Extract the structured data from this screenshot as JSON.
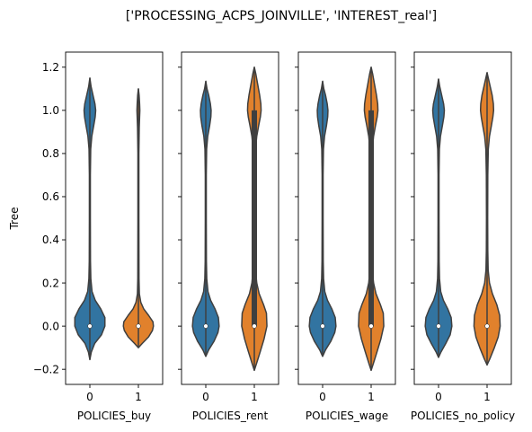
{
  "figure": {
    "title": "['PROCESSING_ACPS_JOINVILLE', 'INTEREST_real']",
    "ylabel": "Tree"
  },
  "colors": {
    "category_0": "#3274a1",
    "category_1": "#e1812c",
    "inner": "#3f3f3f",
    "median": "#ffffff"
  },
  "chart_data": [
    {
      "type": "violin",
      "xlabel": "POLICIES_buy",
      "categories": [
        "0",
        "1"
      ],
      "ylim": [
        -0.27,
        1.27
      ],
      "yticks": [
        -0.2,
        0.0,
        0.2,
        0.4,
        0.6,
        0.8,
        1.0,
        1.2
      ],
      "violins": [
        {
          "category": "0",
          "min": -0.155,
          "max": 1.15,
          "q1": 0.0,
          "median": 0.0,
          "q3": 0.0,
          "density": [
            [
              -0.155,
              0.0
            ],
            [
              -0.12,
              0.06
            ],
            [
              -0.08,
              0.2
            ],
            [
              -0.04,
              0.48
            ],
            [
              0.0,
              0.62
            ],
            [
              0.04,
              0.62
            ],
            [
              0.08,
              0.45
            ],
            [
              0.12,
              0.22
            ],
            [
              0.16,
              0.09
            ],
            [
              0.22,
              0.04
            ],
            [
              0.3,
              0.025
            ],
            [
              0.5,
              0.02
            ],
            [
              0.7,
              0.02
            ],
            [
              0.82,
              0.035
            ],
            [
              0.88,
              0.08
            ],
            [
              0.93,
              0.16
            ],
            [
              0.97,
              0.22
            ],
            [
              1.0,
              0.24
            ],
            [
              1.03,
              0.21
            ],
            [
              1.07,
              0.13
            ],
            [
              1.11,
              0.05
            ],
            [
              1.15,
              0.0
            ]
          ]
        },
        {
          "category": "1",
          "min": -0.1,
          "max": 1.1,
          "q1": 0.0,
          "median": 0.0,
          "q3": 0.0,
          "density": [
            [
              -0.1,
              0.0
            ],
            [
              -0.08,
              0.16
            ],
            [
              -0.05,
              0.42
            ],
            [
              -0.02,
              0.58
            ],
            [
              0.0,
              0.62
            ],
            [
              0.02,
              0.6
            ],
            [
              0.05,
              0.42
            ],
            [
              0.08,
              0.22
            ],
            [
              0.11,
              0.1
            ],
            [
              0.15,
              0.04
            ],
            [
              0.22,
              0.025
            ],
            [
              0.5,
              0.02
            ],
            [
              0.8,
              0.02
            ],
            [
              0.92,
              0.035
            ],
            [
              0.97,
              0.05
            ],
            [
              1.0,
              0.06
            ],
            [
              1.03,
              0.05
            ],
            [
              1.07,
              0.03
            ],
            [
              1.1,
              0.0
            ]
          ]
        }
      ]
    },
    {
      "type": "violin",
      "xlabel": "POLICIES_rent",
      "categories": [
        "0",
        "1"
      ],
      "ylim": [
        -0.27,
        1.27
      ],
      "yticks": [
        -0.2,
        0.0,
        0.2,
        0.4,
        0.6,
        0.8,
        1.0,
        1.2
      ],
      "violins": [
        {
          "category": "0",
          "min": -0.14,
          "max": 1.135,
          "q1": 0.0,
          "median": 0.0,
          "q3": 0.0,
          "density": [
            [
              -0.14,
              0.0
            ],
            [
              -0.11,
              0.12
            ],
            [
              -0.07,
              0.34
            ],
            [
              -0.03,
              0.5
            ],
            [
              0.0,
              0.55
            ],
            [
              0.04,
              0.52
            ],
            [
              0.08,
              0.38
            ],
            [
              0.12,
              0.2
            ],
            [
              0.16,
              0.09
            ],
            [
              0.22,
              0.04
            ],
            [
              0.3,
              0.025
            ],
            [
              0.5,
              0.02
            ],
            [
              0.7,
              0.02
            ],
            [
              0.82,
              0.035
            ],
            [
              0.88,
              0.08
            ],
            [
              0.93,
              0.16
            ],
            [
              0.97,
              0.21
            ],
            [
              1.0,
              0.22
            ],
            [
              1.03,
              0.19
            ],
            [
              1.07,
              0.12
            ],
            [
              1.1,
              0.05
            ],
            [
              1.135,
              0.0
            ]
          ]
        },
        {
          "category": "1",
          "min": -0.205,
          "max": 1.2,
          "q1": 0.0,
          "median": 0.0,
          "q3": 1.0,
          "density": [
            [
              -0.205,
              0.0
            ],
            [
              -0.17,
              0.1
            ],
            [
              -0.12,
              0.24
            ],
            [
              -0.06,
              0.4
            ],
            [
              0.0,
              0.52
            ],
            [
              0.06,
              0.5
            ],
            [
              0.1,
              0.38
            ],
            [
              0.15,
              0.2
            ],
            [
              0.2,
              0.1
            ],
            [
              0.26,
              0.05
            ],
            [
              0.35,
              0.03
            ],
            [
              0.5,
              0.025
            ],
            [
              0.7,
              0.03
            ],
            [
              0.82,
              0.05
            ],
            [
              0.88,
              0.1
            ],
            [
              0.93,
              0.18
            ],
            [
              0.97,
              0.25
            ],
            [
              1.0,
              0.28
            ],
            [
              1.03,
              0.27
            ],
            [
              1.07,
              0.22
            ],
            [
              1.12,
              0.14
            ],
            [
              1.17,
              0.06
            ],
            [
              1.2,
              0.0
            ]
          ]
        }
      ]
    },
    {
      "type": "violin",
      "xlabel": "POLICIES_wage",
      "categories": [
        "0",
        "1"
      ],
      "ylim": [
        -0.27,
        1.27
      ],
      "yticks": [
        -0.2,
        0.0,
        0.2,
        0.4,
        0.6,
        0.8,
        1.0,
        1.2
      ],
      "violins": [
        {
          "category": "0",
          "min": -0.14,
          "max": 1.135,
          "q1": 0.0,
          "median": 0.0,
          "q3": 0.0,
          "density": [
            [
              -0.14,
              0.0
            ],
            [
              -0.11,
              0.12
            ],
            [
              -0.07,
              0.34
            ],
            [
              -0.03,
              0.5
            ],
            [
              0.0,
              0.55
            ],
            [
              0.04,
              0.52
            ],
            [
              0.08,
              0.38
            ],
            [
              0.12,
              0.2
            ],
            [
              0.16,
              0.09
            ],
            [
              0.22,
              0.04
            ],
            [
              0.3,
              0.025
            ],
            [
              0.5,
              0.02
            ],
            [
              0.7,
              0.02
            ],
            [
              0.82,
              0.035
            ],
            [
              0.88,
              0.08
            ],
            [
              0.93,
              0.16
            ],
            [
              0.97,
              0.21
            ],
            [
              1.0,
              0.22
            ],
            [
              1.03,
              0.19
            ],
            [
              1.07,
              0.12
            ],
            [
              1.1,
              0.05
            ],
            [
              1.135,
              0.0
            ]
          ]
        },
        {
          "category": "1",
          "min": -0.205,
          "max": 1.2,
          "q1": 0.0,
          "median": 0.0,
          "q3": 1.0,
          "density": [
            [
              -0.205,
              0.0
            ],
            [
              -0.17,
              0.1
            ],
            [
              -0.12,
              0.24
            ],
            [
              -0.06,
              0.4
            ],
            [
              0.0,
              0.52
            ],
            [
              0.06,
              0.5
            ],
            [
              0.1,
              0.38
            ],
            [
              0.15,
              0.2
            ],
            [
              0.2,
              0.1
            ],
            [
              0.26,
              0.05
            ],
            [
              0.35,
              0.03
            ],
            [
              0.5,
              0.025
            ],
            [
              0.7,
              0.03
            ],
            [
              0.82,
              0.05
            ],
            [
              0.88,
              0.1
            ],
            [
              0.93,
              0.18
            ],
            [
              0.97,
              0.25
            ],
            [
              1.0,
              0.28
            ],
            [
              1.03,
              0.27
            ],
            [
              1.07,
              0.22
            ],
            [
              1.12,
              0.14
            ],
            [
              1.17,
              0.06
            ],
            [
              1.2,
              0.0
            ]
          ]
        }
      ]
    },
    {
      "type": "violin",
      "xlabel": "POLICIES_no_policy",
      "categories": [
        "0",
        "1"
      ],
      "ylim": [
        -0.27,
        1.27
      ],
      "yticks": [
        -0.2,
        0.0,
        0.2,
        0.4,
        0.6,
        0.8,
        1.0,
        1.2
      ],
      "violins": [
        {
          "category": "0",
          "min": -0.145,
          "max": 1.145,
          "q1": 0.0,
          "median": 0.0,
          "q3": 0.0,
          "density": [
            [
              -0.145,
              0.0
            ],
            [
              -0.12,
              0.1
            ],
            [
              -0.08,
              0.3
            ],
            [
              -0.04,
              0.48
            ],
            [
              0.0,
              0.55
            ],
            [
              0.04,
              0.52
            ],
            [
              0.08,
              0.38
            ],
            [
              0.12,
              0.2
            ],
            [
              0.16,
              0.09
            ],
            [
              0.22,
              0.04
            ],
            [
              0.3,
              0.025
            ],
            [
              0.5,
              0.02
            ],
            [
              0.7,
              0.02
            ],
            [
              0.82,
              0.035
            ],
            [
              0.88,
              0.08
            ],
            [
              0.93,
              0.16
            ],
            [
              0.97,
              0.22
            ],
            [
              1.0,
              0.24
            ],
            [
              1.03,
              0.21
            ],
            [
              1.07,
              0.13
            ],
            [
              1.11,
              0.05
            ],
            [
              1.145,
              0.0
            ]
          ]
        },
        {
          "category": "1",
          "min": -0.18,
          "max": 1.175,
          "q1": 0.0,
          "median": 0.0,
          "q3": 0.0,
          "density": [
            [
              -0.18,
              0.0
            ],
            [
              -0.15,
              0.12
            ],
            [
              -0.1,
              0.3
            ],
            [
              -0.05,
              0.46
            ],
            [
              0.0,
              0.54
            ],
            [
              0.05,
              0.52
            ],
            [
              0.1,
              0.4
            ],
            [
              0.15,
              0.22
            ],
            [
              0.2,
              0.1
            ],
            [
              0.26,
              0.045
            ],
            [
              0.35,
              0.03
            ],
            [
              0.5,
              0.025
            ],
            [
              0.7,
              0.03
            ],
            [
              0.82,
              0.05
            ],
            [
              0.88,
              0.1
            ],
            [
              0.93,
              0.18
            ],
            [
              0.97,
              0.24
            ],
            [
              1.0,
              0.27
            ],
            [
              1.03,
              0.26
            ],
            [
              1.07,
              0.21
            ],
            [
              1.11,
              0.13
            ],
            [
              1.15,
              0.05
            ],
            [
              1.175,
              0.0
            ]
          ]
        }
      ]
    }
  ]
}
